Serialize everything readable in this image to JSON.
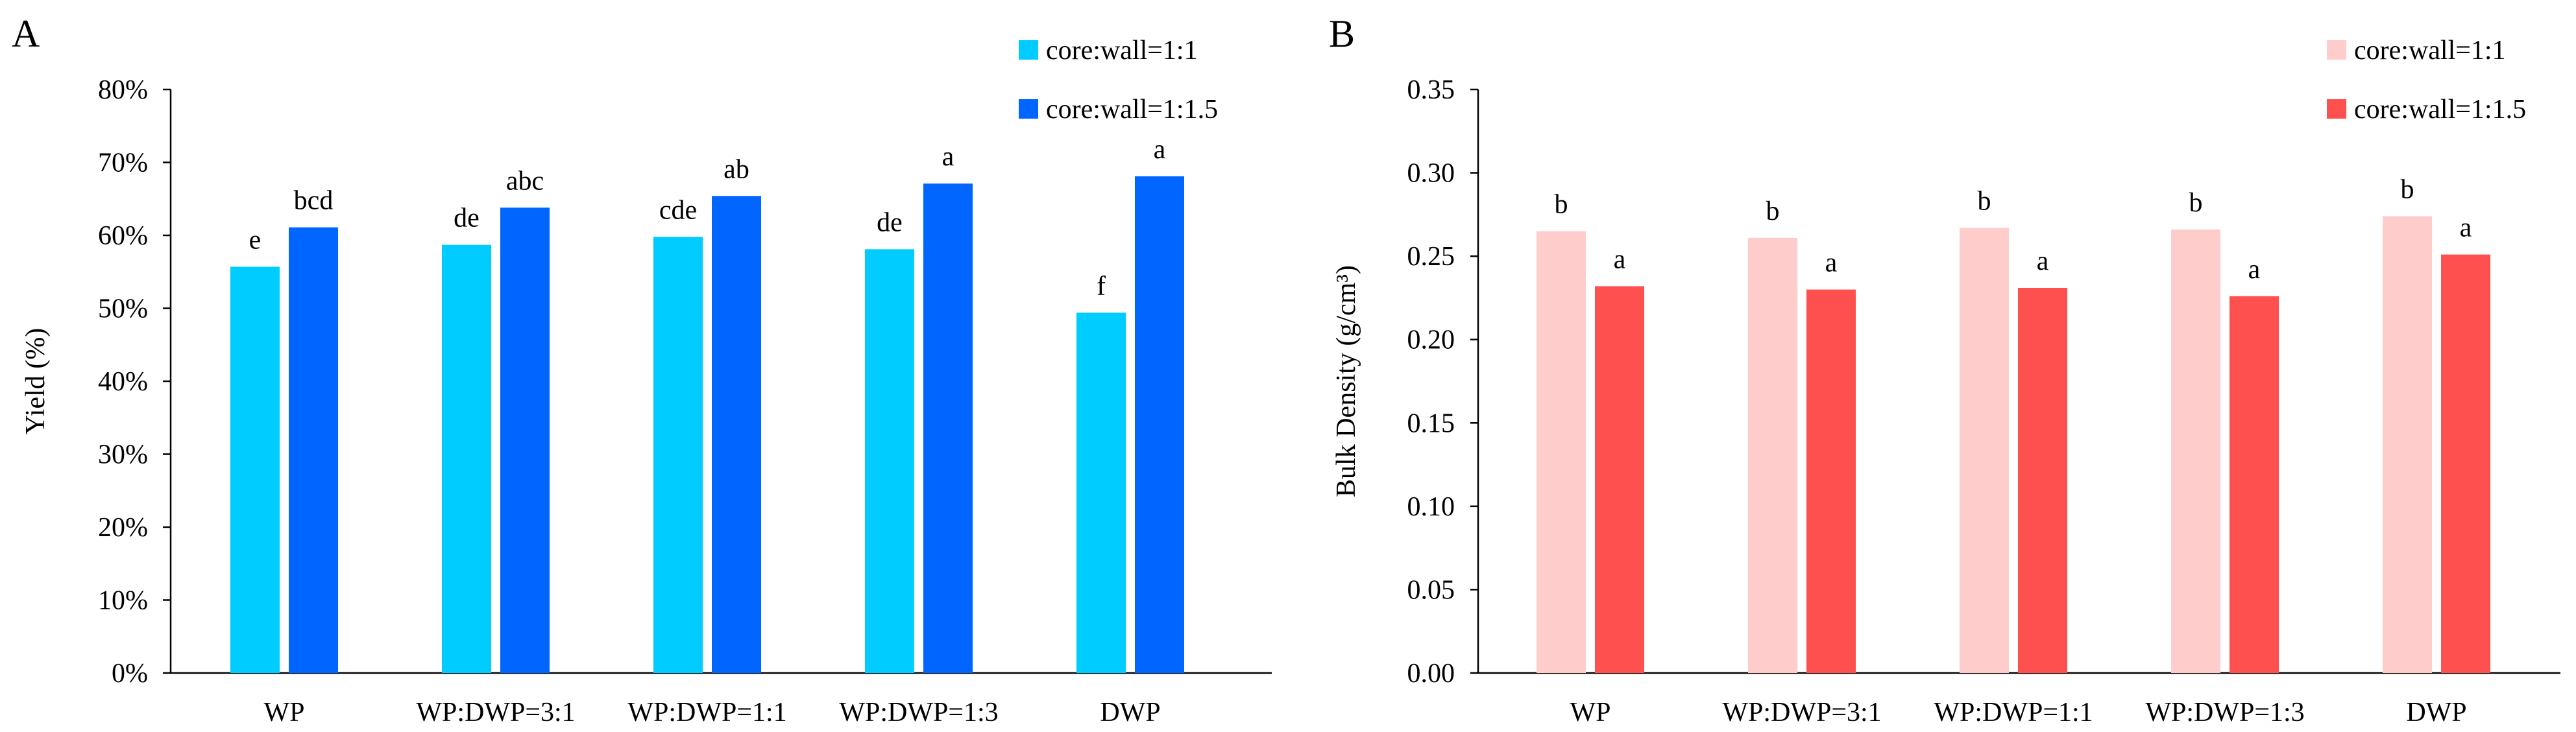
{
  "chart_data": [
    {
      "panel_label": "A",
      "type": "bar",
      "title": "",
      "xlabel": "",
      "ylabel": "Yield (%)",
      "ylim": [
        0,
        80
      ],
      "yticks": [
        0,
        10,
        20,
        30,
        40,
        50,
        60,
        70,
        80
      ],
      "y_tick_labels": [
        "0%",
        "10%",
        "20%",
        "30%",
        "40%",
        "50%",
        "60%",
        "70%",
        "80%"
      ],
      "grid": false,
      "legend_position": "top-right",
      "categories": [
        "WP",
        "WP:DWP=3:1",
        "WP:DWP=1:1",
        "WP:DWP=1:3",
        "DWP"
      ],
      "series": [
        {
          "name": "core:wall=1:1",
          "color": "#00CCFF",
          "values": [
            55.7,
            58.7,
            59.8,
            58.1,
            49.4
          ],
          "labels": [
            "e",
            "de",
            "cde",
            "de",
            "f"
          ]
        },
        {
          "name": "core:wall=1:1.5",
          "color": "#0066FF",
          "values": [
            61.1,
            63.8,
            65.4,
            67.1,
            68.1
          ],
          "labels": [
            "bcd",
            "abc",
            "ab",
            "a",
            "a"
          ]
        }
      ]
    },
    {
      "panel_label": "B",
      "type": "bar",
      "title": "",
      "xlabel": "",
      "ylabel": "Bulk Density (g/cm³)",
      "ylim": [
        0,
        0.35
      ],
      "yticks": [
        0,
        0.05,
        0.1,
        0.15,
        0.2,
        0.25,
        0.3,
        0.35
      ],
      "y_tick_labels": [
        "0.00",
        "0.05",
        "0.10",
        "0.15",
        "0.20",
        "0.25",
        "0.30",
        "0.35"
      ],
      "grid": false,
      "legend_position": "top-right",
      "categories": [
        "WP",
        "WP:DWP=3:1",
        "WP:DWP=1:1",
        "WP:DWP=1:3",
        "DWP"
      ],
      "series": [
        {
          "name": "core:wall=1:1",
          "color": "#FFCCCC",
          "values": [
            0.265,
            0.261,
            0.267,
            0.266,
            0.274
          ],
          "labels": [
            "b",
            "b",
            "b",
            "b",
            "b"
          ]
        },
        {
          "name": "core:wall=1:1.5",
          "color": "#FF5050",
          "values": [
            0.232,
            0.23,
            0.231,
            0.226,
            0.251
          ],
          "labels": [
            "a",
            "a",
            "a",
            "a",
            "a"
          ]
        }
      ]
    }
  ]
}
